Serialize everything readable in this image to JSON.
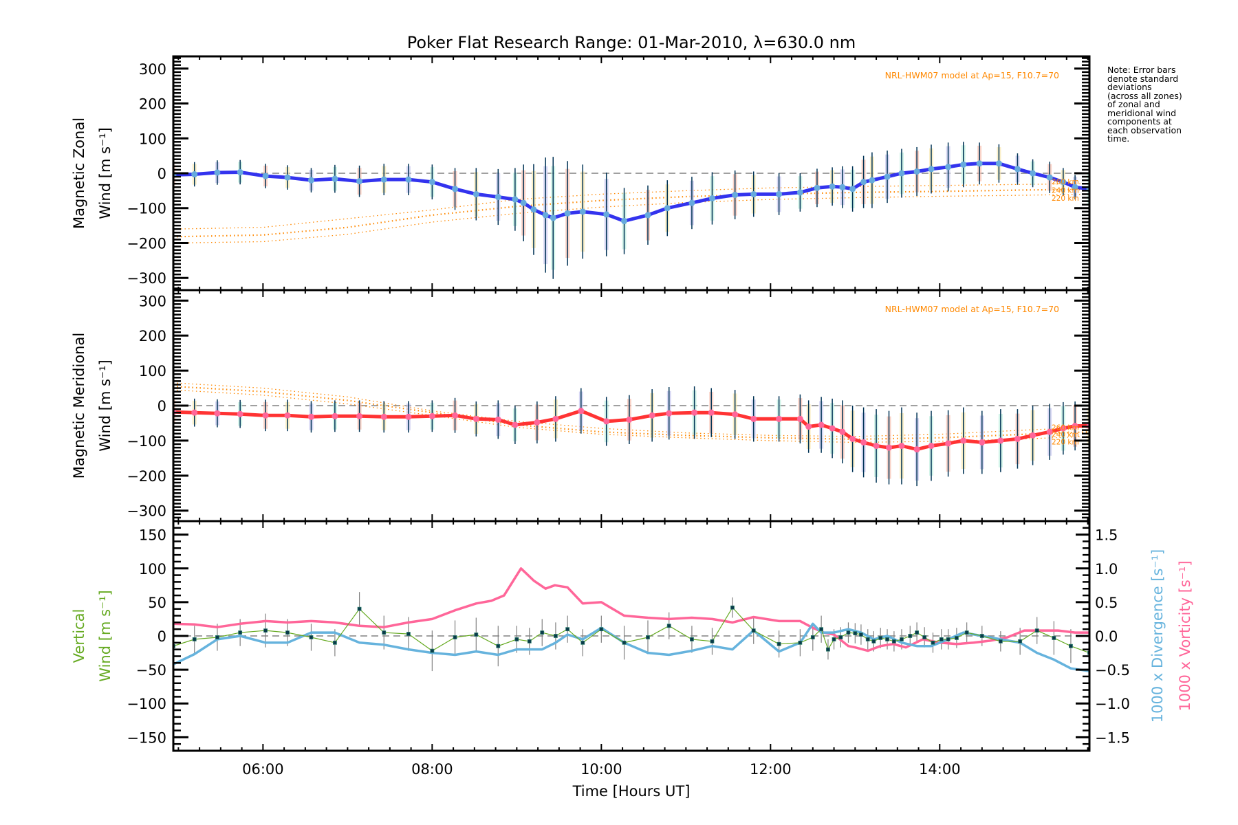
{
  "chart_data": {
    "type": "line",
    "title": "Poker Flat Research Range: 01-Mar-2010, λ=630.0 nm",
    "xlabel": "Time [Hours UT]",
    "xlim_hours": [
      4.94,
      15.77
    ],
    "xticks": [
      {
        "h": 6,
        "label": "06:00"
      },
      {
        "h": 8,
        "label": "08:00"
      },
      {
        "h": 10,
        "label": "10:00"
      },
      {
        "h": 12,
        "label": "12:00"
      },
      {
        "h": 14,
        "label": "14:00"
      }
    ],
    "note": "Note: Error bars\ndenote standard\ndeviations\n(across all zones)\nof zonal and\nmeridional wind\ncomponents at\neach observation\ntime.",
    "colors": {
      "zonal": "#3333ee",
      "zonal_marker": "#66aadd",
      "meridional": "#ff3333",
      "meridional_marker": "#ff6699",
      "model": "#ff8800",
      "vertical": "#66aa22",
      "divergence": "#66b3dd",
      "vorticity": "#ff6699",
      "errorbar": "#003355",
      "zero": "#808080"
    },
    "panels": [
      {
        "name": "zonal",
        "ylabel_line1": "Magnetic Zonal",
        "ylabel_line2": "Wind [m s⁻¹]",
        "ylim": [
          -335,
          335
        ],
        "yticks": [
          300,
          200,
          100,
          0,
          -100,
          -200,
          -300
        ],
        "tick_labels": [
          "300",
          "200",
          "100",
          "0",
          "−100",
          "−200",
          "−300"
        ],
        "model_label": "NRL-HWM07 model at Ap=15, F10.7=70",
        "altitude_labels": [
          "260 km",
          "240 km",
          "220 km"
        ],
        "series": {
          "name": "Magnetic Zonal Wind",
          "x": [
            4.94,
            5.19,
            5.46,
            5.73,
            6.03,
            6.29,
            6.57,
            6.85,
            7.14,
            7.43,
            7.72,
            8.0,
            8.27,
            8.52,
            8.78,
            8.98,
            9.08,
            9.2,
            9.34,
            9.43,
            9.6,
            9.78,
            10.06,
            10.27,
            10.55,
            10.78,
            11.07,
            11.31,
            11.58,
            11.8,
            12.1,
            12.35,
            12.55,
            12.73,
            12.85,
            12.97,
            13.1,
            13.2,
            13.38,
            13.55,
            13.73,
            13.9,
            14.1,
            14.28,
            14.47,
            14.7,
            14.92,
            15.1,
            15.3,
            15.46,
            15.6,
            15.77
          ],
          "y": [
            -5,
            -3,
            2,
            3,
            -8,
            -12,
            -20,
            -16,
            -23,
            -18,
            -18,
            -25,
            -45,
            -60,
            -68,
            -75,
            -85,
            -104,
            -120,
            -128,
            -115,
            -110,
            -118,
            -137,
            -120,
            -100,
            -85,
            -72,
            -62,
            -60,
            -60,
            -55,
            -42,
            -38,
            -40,
            -45,
            -25,
            -20,
            -10,
            0,
            5,
            12,
            18,
            25,
            28,
            28,
            12,
            0,
            -12,
            -25,
            -40,
            -45
          ],
          "err": [
            35,
            35,
            35,
            35,
            35,
            35,
            35,
            40,
            45,
            45,
            45,
            50,
            60,
            75,
            80,
            90,
            110,
            130,
            165,
            175,
            150,
            135,
            120,
            95,
            85,
            80,
            75,
            75,
            70,
            65,
            60,
            55,
            55,
            55,
            60,
            65,
            75,
            80,
            75,
            70,
            70,
            70,
            70,
            65,
            60,
            55,
            45,
            40,
            45,
            40,
            35,
            55
          ]
        },
        "model": [
          {
            "alt": "260 km",
            "x": [
              4.94,
              6.0,
              7.0,
              8.0,
              9.0,
              10.0,
              11.0,
              12.0,
              13.0,
              14.0,
              15.0,
              15.77
            ],
            "y": [
              -160,
              -155,
              -130,
              -105,
              -75,
              -60,
              -50,
              -42,
              -38,
              -35,
              -32,
              -30
            ]
          },
          {
            "alt": "240 km",
            "x": [
              4.94,
              6.0,
              7.0,
              8.0,
              9.0,
              10.0,
              11.0,
              12.0,
              13.0,
              14.0,
              15.0,
              15.77
            ],
            "y": [
              -182,
              -177,
              -155,
              -120,
              -95,
              -78,
              -67,
              -60,
              -55,
              -52,
              -48,
              -46
            ]
          },
          {
            "alt": "220 km",
            "x": [
              4.94,
              6.0,
              7.0,
              8.0,
              9.0,
              10.0,
              11.0,
              12.0,
              13.0,
              14.0,
              15.0,
              15.77
            ],
            "y": [
              -200,
              -196,
              -175,
              -140,
              -115,
              -97,
              -84,
              -75,
              -70,
              -66,
              -63,
              -60
            ]
          }
        ]
      },
      {
        "name": "meridional",
        "ylabel_line1": "Magnetic Meridional",
        "ylabel_line2": "Wind [m s⁻¹]",
        "ylim": [
          -330,
          330
        ],
        "yticks": [
          300,
          200,
          100,
          0,
          -100,
          -200,
          -300
        ],
        "tick_labels": [
          "300",
          "200",
          "100",
          "0",
          "−100",
          "−200",
          "−300"
        ],
        "model_label": "NRL-HWM07 model at Ap=15, F10.7=70",
        "altitude_labels": [
          "260 km",
          "240 km",
          "220 km"
        ],
        "series": {
          "name": "Magnetic Meridional Wind",
          "x": [
            4.94,
            5.19,
            5.46,
            5.73,
            6.03,
            6.29,
            6.57,
            6.85,
            7.14,
            7.43,
            7.72,
            8.0,
            8.27,
            8.52,
            8.78,
            8.98,
            9.24,
            9.46,
            9.76,
            10.06,
            10.33,
            10.6,
            10.8,
            11.1,
            11.3,
            11.58,
            11.8,
            12.1,
            12.35,
            12.45,
            12.6,
            12.73,
            12.85,
            12.97,
            13.1,
            13.25,
            13.4,
            13.55,
            13.73,
            13.9,
            14.1,
            14.28,
            14.5,
            14.72,
            14.92,
            15.1,
            15.3,
            15.46,
            15.6,
            15.77
          ],
          "y": [
            -18,
            -20,
            -22,
            -24,
            -28,
            -28,
            -32,
            -30,
            -30,
            -32,
            -32,
            -30,
            -28,
            -38,
            -40,
            -55,
            -48,
            -38,
            -15,
            -45,
            -40,
            -28,
            -22,
            -20,
            -20,
            -25,
            -38,
            -38,
            -38,
            -60,
            -55,
            -65,
            -75,
            -95,
            -105,
            -115,
            -120,
            -115,
            -125,
            -115,
            -108,
            -100,
            -105,
            -100,
            -95,
            -85,
            -75,
            -65,
            -58,
            -58
          ],
          "err": [
            40,
            40,
            40,
            40,
            45,
            45,
            45,
            45,
            45,
            45,
            45,
            45,
            50,
            50,
            55,
            55,
            60,
            65,
            65,
            70,
            70,
            75,
            75,
            75,
            70,
            70,
            65,
            65,
            70,
            75,
            80,
            85,
            90,
            95,
            100,
            105,
            105,
            110,
            105,
            100,
            95,
            95,
            90,
            90,
            85,
            85,
            80,
            75,
            70,
            60
          ]
        },
        "model": [
          {
            "alt": "260 km",
            "x": [
              4.94,
              6.0,
              7.0,
              8.0,
              9.0,
              10.0,
              11.0,
              12.0,
              13.0,
              14.0,
              15.0,
              15.77
            ],
            "y": [
              65,
              50,
              25,
              -15,
              -45,
              -65,
              -78,
              -85,
              -88,
              -82,
              -70,
              -62
            ]
          },
          {
            "alt": "240 km",
            "x": [
              4.94,
              6.0,
              7.0,
              8.0,
              9.0,
              10.0,
              11.0,
              12.0,
              13.0,
              14.0,
              15.0,
              15.77
            ],
            "y": [
              55,
              40,
              15,
              -20,
              -55,
              -75,
              -85,
              -92,
              -96,
              -92,
              -82,
              -75
            ]
          },
          {
            "alt": "220 km",
            "x": [
              4.94,
              6.0,
              7.0,
              8.0,
              9.0,
              10.0,
              11.0,
              12.0,
              13.0,
              14.0,
              15.0,
              15.77
            ],
            "y": [
              45,
              30,
              5,
              -28,
              -62,
              -82,
              -92,
              -100,
              -105,
              -102,
              -95,
              -88
            ]
          }
        ]
      },
      {
        "name": "vertical",
        "ylabel_line1": "Vertical",
        "ylabel_line2": "Wind [m s⁻¹]",
        "ylim": [
          -170,
          170
        ],
        "yticks": [
          150,
          100,
          50,
          0,
          -50,
          -100,
          -150
        ],
        "tick_labels": [
          "150",
          "100",
          "50",
          "0",
          "−50",
          "−100",
          "−150"
        ],
        "right_ylim": [
          -1.7,
          1.7
        ],
        "right_yticks": [
          1.5,
          1.0,
          0.5,
          0.0,
          -0.5,
          -1.0,
          -1.5
        ],
        "right_tick_labels": [
          "1.5",
          "1.0",
          "0.5",
          "0.0",
          "−0.5",
          "−1.0",
          "−1.5"
        ],
        "right_label_divergence": "1000 x Divergence [s⁻¹]",
        "right_label_vorticity": "1000 x Vorticity [s⁻¹]",
        "vertical_series": {
          "name": "Vertical Wind",
          "x": [
            4.94,
            5.19,
            5.46,
            5.73,
            6.03,
            6.29,
            6.57,
            6.85,
            7.14,
            7.43,
            7.72,
            8.0,
            8.27,
            8.52,
            8.78,
            9.0,
            9.15,
            9.3,
            9.46,
            9.6,
            9.78,
            10.0,
            10.27,
            10.55,
            10.8,
            11.07,
            11.31,
            11.55,
            11.8,
            12.1,
            12.35,
            12.5,
            12.6,
            12.68,
            12.75,
            12.83,
            12.92,
            13.0,
            13.07,
            13.15,
            13.22,
            13.3,
            13.38,
            13.46,
            13.55,
            13.65,
            13.73,
            13.82,
            13.92,
            14.02,
            14.1,
            14.2,
            14.32,
            14.5,
            14.72,
            14.95,
            15.15,
            15.35,
            15.55,
            15.77
          ],
          "y": [
            -15,
            -5,
            -2,
            5,
            8,
            5,
            -2,
            -10,
            40,
            5,
            3,
            -22,
            -2,
            2,
            -15,
            -5,
            -8,
            5,
            0,
            10,
            -10,
            10,
            -10,
            -2,
            15,
            -5,
            -8,
            42,
            8,
            -12,
            -10,
            -2,
            10,
            -20,
            -5,
            -2,
            5,
            4,
            2,
            -5,
            -8,
            -3,
            -5,
            -8,
            -5,
            0,
            5,
            -2,
            -10,
            -5,
            -5,
            -3,
            5,
            0,
            -8,
            -8,
            8,
            -3,
            -15,
            -25
          ],
          "err": [
            20,
            20,
            20,
            20,
            25,
            20,
            20,
            20,
            25,
            25,
            25,
            30,
            25,
            25,
            30,
            20,
            20,
            20,
            20,
            20,
            20,
            20,
            25,
            25,
            20,
            20,
            20,
            15,
            20,
            20,
            20,
            20,
            20,
            15,
            15,
            15,
            15,
            15,
            15,
            15,
            15,
            15,
            15,
            15,
            15,
            15,
            15,
            15,
            15,
            15,
            15,
            15,
            15,
            15,
            15,
            20,
            20,
            25,
            25,
            25
          ]
        },
        "divergence_series": {
          "name": "1000 x Divergence",
          "x": [
            4.94,
            5.19,
            5.46,
            5.73,
            6.03,
            6.29,
            6.57,
            6.85,
            7.14,
            7.43,
            7.72,
            8.0,
            8.27,
            8.52,
            8.78,
            9.0,
            9.15,
            9.3,
            9.46,
            9.6,
            9.78,
            10.0,
            10.27,
            10.55,
            10.8,
            11.07,
            11.31,
            11.55,
            11.8,
            12.1,
            12.35,
            12.5,
            12.6,
            12.75,
            12.92,
            13.07,
            13.22,
            13.38,
            13.55,
            13.73,
            13.9,
            14.1,
            14.28,
            14.5,
            14.72,
            14.95,
            15.15,
            15.35,
            15.55,
            15.77
          ],
          "y": [
            -0.42,
            -0.27,
            -0.05,
            0.0,
            -0.1,
            -0.1,
            0.05,
            0.05,
            -0.1,
            -0.13,
            -0.2,
            -0.25,
            -0.28,
            -0.23,
            -0.28,
            -0.2,
            -0.2,
            -0.2,
            -0.1,
            0.02,
            -0.05,
            0.12,
            -0.1,
            -0.25,
            -0.28,
            -0.22,
            -0.15,
            -0.2,
            0.08,
            -0.23,
            -0.1,
            0.18,
            0.05,
            0.05,
            0.1,
            0.05,
            -0.05,
            0.0,
            -0.1,
            -0.15,
            -0.15,
            -0.05,
            0.05,
            0.0,
            -0.05,
            -0.1,
            -0.25,
            -0.35,
            -0.48,
            -0.52
          ],
          "err": []
        },
        "vorticity_series": {
          "name": "1000 x Vorticity",
          "x": [
            4.94,
            5.19,
            5.46,
            5.73,
            6.03,
            6.29,
            6.57,
            6.85,
            7.14,
            7.43,
            7.72,
            8.0,
            8.27,
            8.52,
            8.7,
            8.85,
            9.05,
            9.2,
            9.34,
            9.45,
            9.6,
            9.78,
            10.0,
            10.27,
            10.55,
            10.8,
            11.07,
            11.31,
            11.55,
            11.8,
            12.1,
            12.35,
            12.5,
            12.63,
            12.75,
            12.92,
            13.0,
            13.15,
            13.3,
            13.45,
            13.6,
            13.8,
            14.0,
            14.2,
            14.4,
            14.6,
            14.8,
            15.0,
            15.2,
            15.4,
            15.6,
            15.77
          ],
          "y": [
            0.18,
            0.17,
            0.13,
            0.18,
            0.22,
            0.2,
            0.22,
            0.2,
            0.15,
            0.13,
            0.2,
            0.25,
            0.38,
            0.48,
            0.52,
            0.6,
            1.0,
            0.82,
            0.7,
            0.75,
            0.72,
            0.48,
            0.5,
            0.3,
            0.27,
            0.25,
            0.27,
            0.25,
            0.2,
            0.28,
            0.22,
            0.22,
            0.12,
            0.05,
            0.02,
            -0.15,
            -0.17,
            -0.22,
            -0.15,
            -0.12,
            -0.17,
            -0.05,
            -0.1,
            -0.12,
            -0.1,
            -0.07,
            -0.02,
            0.08,
            0.08,
            0.08,
            0.05,
            0.05
          ]
        }
      }
    ]
  }
}
